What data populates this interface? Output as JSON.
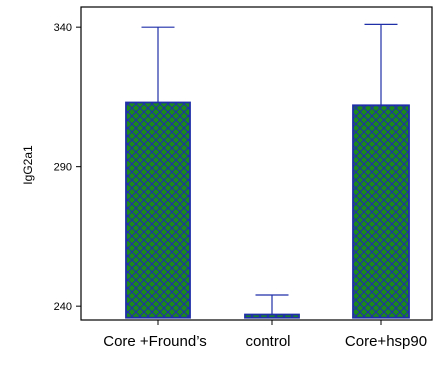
{
  "chart_data": {
    "type": "bar",
    "categories": [
      "Core +Fround’s",
      "control",
      "Core+hsp90"
    ],
    "values": [
      313,
      237,
      312
    ],
    "error_upper": [
      340,
      244,
      341
    ],
    "ylabel": "IgG2a1",
    "xlabel": "",
    "title": "",
    "ylim": [
      233,
      347
    ],
    "yticks": [
      240,
      290,
      340
    ],
    "bar_fill_color": "#1a8a1a",
    "bar_hatch_color": "#1f2fa8",
    "error_bar_color": "#1f2fa8",
    "grid": false
  }
}
